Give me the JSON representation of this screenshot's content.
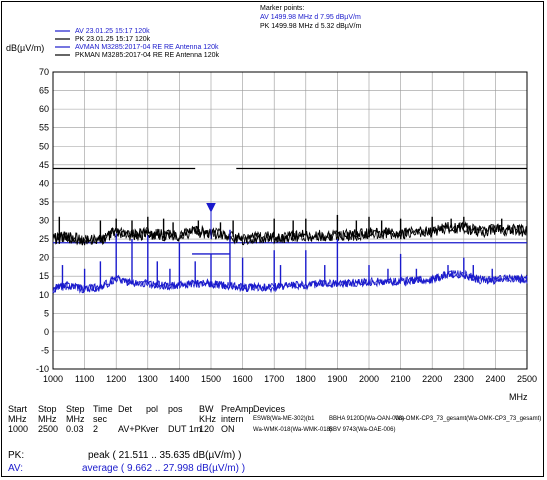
{
  "marker_box": {
    "title": "Marker points:",
    "lines": [
      "AV 1499.98 MHz  d 7.95 dBµV/m",
      "PK 1499.98 MHz  d 5.32 dBµV/m"
    ]
  },
  "legend": [
    {
      "label": "AV  23.01.25 15:17 120k",
      "color": "#1a1acc"
    },
    {
      "label": "PK  23.01.25 15:17 120k",
      "color": "#000000"
    },
    {
      "label": "AVMAN M3285:2017-04 RE RE Antenna 120k",
      "color": "#1a1acc"
    },
    {
      "label": "PKMAN M3285:2017-04 RE RE Antenna 120k",
      "color": "#000000"
    }
  ],
  "settings": {
    "headers": [
      "Start",
      "Stop",
      "Step",
      "Time",
      "Det",
      "pol",
      "pos",
      "BW",
      "PreAmp",
      "Devices"
    ],
    "units": [
      "MHz",
      "MHz",
      "MHz",
      "sec",
      "",
      "",
      "",
      "KHz",
      "intern"
    ],
    "values": [
      "1000",
      "2500",
      "0.03",
      "2",
      "AV+PK",
      "ver",
      "DUT 1m",
      "120",
      "ON"
    ],
    "devices": [
      "ESW8(Wa-ME-302)(b1",
      "BBHA 9120D(Wa-OAN-008)",
      "Wa-OMK-CP3_73_gesamt(Wa-OMK-CP3_73_gesamt)",
      "Wa-WMK-018(Wa-WMK-018)",
      "BBV 9743(Wa-OAE-006)"
    ]
  },
  "summary": {
    "pk_label": "PK:",
    "pk_text": "peak ( 21.511 .. 35.635 dB(µV/m) )",
    "av_label": "AV:",
    "av_text": "average ( 9.662 .. 27.998 dB(µV/m) )"
  },
  "chart_data": {
    "type": "line",
    "ylabel": "dB(µV/m)",
    "xlabel": "MHz",
    "xlim": [
      1000,
      2500
    ],
    "ylim": [
      -10,
      70
    ],
    "xticks": [
      1000,
      1100,
      1200,
      1300,
      1400,
      1500,
      1600,
      1700,
      1800,
      1900,
      2000,
      2100,
      2200,
      2300,
      2400,
      2500
    ],
    "yticks": [
      -10,
      -5,
      0,
      5,
      10,
      15,
      20,
      25,
      30,
      35,
      40,
      45,
      50,
      55,
      60,
      65,
      70
    ],
    "grid": true,
    "limit_lines": [
      {
        "name": "PKMAN",
        "segments": [
          [
            1000,
            1450,
            44
          ],
          [
            1580,
            2500,
            44
          ]
        ],
        "color": "#000000"
      },
      {
        "name": "AVMAN",
        "segments": [
          [
            1000,
            2500,
            24
          ]
        ],
        "color": "#1a1acc"
      }
    ],
    "marker": {
      "x": 1499.98,
      "y": 33.5,
      "color": "#1a1acc"
    },
    "marker_bar": {
      "x": [
        1440,
        1560
      ],
      "y": 21
    },
    "series": [
      {
        "name": "PK",
        "color": "#000000",
        "x": [
          1000,
          1050,
          1100,
          1150,
          1200,
          1250,
          1300,
          1350,
          1400,
          1450,
          1500,
          1550,
          1600,
          1650,
          1700,
          1750,
          1800,
          1850,
          1900,
          1950,
          2000,
          2050,
          2100,
          2150,
          2200,
          2250,
          2300,
          2350,
          2400,
          2450,
          2500
        ],
        "y": [
          25,
          25.5,
          24.5,
          25,
          27,
          26,
          26.5,
          26,
          26,
          27,
          26.5,
          26,
          25,
          25.5,
          25.5,
          25.5,
          26,
          26,
          26,
          26,
          26.5,
          26.5,
          26.5,
          27,
          27,
          28,
          28,
          27,
          27.5,
          27.5,
          27
        ],
        "spikes": [
          [
            1020,
            31
          ],
          [
            1150,
            30
          ],
          [
            1200,
            30.5
          ],
          [
            1250,
            30
          ],
          [
            1300,
            31
          ],
          [
            1350,
            30.5
          ],
          [
            1380,
            29.5
          ],
          [
            1460,
            30
          ],
          [
            1530,
            29.5
          ],
          [
            1570,
            30
          ],
          [
            1700,
            30.5
          ],
          [
            1760,
            30
          ],
          [
            1800,
            30.5
          ],
          [
            1900,
            31.5
          ],
          [
            1960,
            30
          ],
          [
            2000,
            31
          ],
          [
            2040,
            30
          ],
          [
            2100,
            30.5
          ],
          [
            2200,
            31
          ],
          [
            2260,
            30.5
          ],
          [
            2300,
            31
          ],
          [
            2420,
            30.5
          ]
        ]
      },
      {
        "name": "AV",
        "color": "#1a1acc",
        "x": [
          1000,
          1050,
          1100,
          1150,
          1200,
          1250,
          1300,
          1350,
          1400,
          1450,
          1500,
          1550,
          1600,
          1650,
          1700,
          1750,
          1800,
          1850,
          1900,
          1950,
          2000,
          2050,
          2100,
          2150,
          2200,
          2250,
          2300,
          2350,
          2400,
          2450,
          2500
        ],
        "y": [
          11.5,
          12.5,
          11.5,
          12,
          14.5,
          13,
          13,
          12.5,
          12.5,
          13,
          13,
          12.5,
          12,
          12,
          12,
          12.5,
          12.5,
          13,
          13,
          13,
          13.5,
          13.5,
          13.5,
          14,
          14,
          15.5,
          15.5,
          14,
          14,
          14.5,
          14
        ],
        "spikes": [
          [
            1030,
            18
          ],
          [
            1100,
            17
          ],
          [
            1150,
            19
          ],
          [
            1200,
            26.5
          ],
          [
            1250,
            25
          ],
          [
            1300,
            26
          ],
          [
            1330,
            19
          ],
          [
            1370,
            17
          ],
          [
            1400,
            24
          ],
          [
            1450,
            19
          ],
          [
            1500,
            21
          ],
          [
            1560,
            27.5
          ],
          [
            1600,
            20
          ],
          [
            1700,
            22
          ],
          [
            1720,
            18
          ],
          [
            1800,
            22
          ],
          [
            1860,
            18
          ],
          [
            1900,
            25
          ],
          [
            2000,
            18
          ],
          [
            2060,
            17
          ],
          [
            2100,
            21
          ],
          [
            2150,
            17
          ],
          [
            2250,
            18
          ],
          [
            2300,
            20
          ],
          [
            2330,
            18
          ],
          [
            2390,
            17
          ]
        ]
      }
    ]
  }
}
